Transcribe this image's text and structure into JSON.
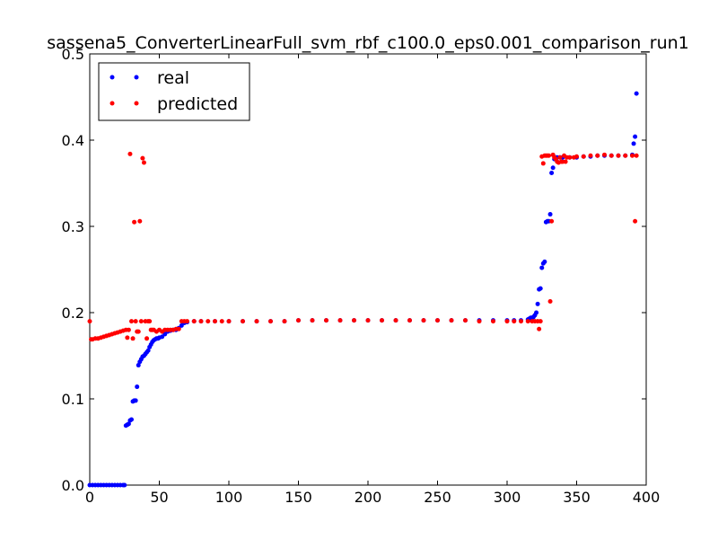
{
  "chart_data": {
    "type": "scatter",
    "title": "sassena5_ConverterLinearFull_svm_rbf_c100.0_eps0.001_comparison_run1",
    "xlabel": "",
    "ylabel": "",
    "xlim": [
      0,
      400
    ],
    "ylim": [
      0,
      0.5
    ],
    "x_ticks": [
      0,
      50,
      100,
      150,
      200,
      250,
      300,
      350,
      400
    ],
    "y_ticks": [
      0.0,
      0.1,
      0.2,
      0.3,
      0.4,
      0.5
    ],
    "x_tick_labels": [
      "0",
      "50",
      "100",
      "150",
      "200",
      "250",
      "300",
      "350",
      "400"
    ],
    "y_tick_labels": [
      "0.0",
      "0.1",
      "0.2",
      "0.3",
      "0.4",
      "0.5"
    ],
    "grid": false,
    "legend_position": "top-left",
    "series": [
      {
        "name": "real",
        "color": "#0000ff",
        "marker": "circle",
        "points": [
          [
            0,
            0
          ],
          [
            2,
            0
          ],
          [
            4,
            0
          ],
          [
            6,
            0
          ],
          [
            8,
            0
          ],
          [
            10,
            0
          ],
          [
            12,
            0
          ],
          [
            14,
            0
          ],
          [
            16,
            0
          ],
          [
            18,
            0
          ],
          [
            20,
            0
          ],
          [
            22,
            0
          ],
          [
            24,
            0
          ],
          [
            25,
            0
          ],
          [
            26,
            0.069
          ],
          [
            27,
            0.07
          ],
          [
            28,
            0.071
          ],
          [
            29,
            0.075
          ],
          [
            30,
            0.076
          ],
          [
            31,
            0.097
          ],
          [
            32,
            0.098
          ],
          [
            33,
            0.098
          ],
          [
            34,
            0.114
          ],
          [
            35,
            0.139
          ],
          [
            36,
            0.143
          ],
          [
            37,
            0.146
          ],
          [
            38,
            0.149
          ],
          [
            39,
            0.15
          ],
          [
            40,
            0.152
          ],
          [
            41,
            0.154
          ],
          [
            42,
            0.156
          ],
          [
            43,
            0.16
          ],
          [
            44,
            0.163
          ],
          [
            45,
            0.166
          ],
          [
            46,
            0.168
          ],
          [
            47,
            0.169
          ],
          [
            48,
            0.17
          ],
          [
            49,
            0.17
          ],
          [
            50,
            0.171
          ],
          [
            52,
            0.172
          ],
          [
            54,
            0.175
          ],
          [
            56,
            0.178
          ],
          [
            58,
            0.179
          ],
          [
            60,
            0.18
          ],
          [
            62,
            0.18
          ],
          [
            64,
            0.182
          ],
          [
            66,
            0.185
          ],
          [
            68,
            0.188
          ],
          [
            70,
            0.189
          ],
          [
            75,
            0.19
          ],
          [
            80,
            0.19
          ],
          [
            90,
            0.19
          ],
          [
            100,
            0.19
          ],
          [
            110,
            0.19
          ],
          [
            120,
            0.19
          ],
          [
            130,
            0.19
          ],
          [
            140,
            0.19
          ],
          [
            150,
            0.191
          ],
          [
            160,
            0.191
          ],
          [
            170,
            0.191
          ],
          [
            180,
            0.191
          ],
          [
            190,
            0.191
          ],
          [
            200,
            0.191
          ],
          [
            210,
            0.191
          ],
          [
            220,
            0.191
          ],
          [
            230,
            0.191
          ],
          [
            240,
            0.191
          ],
          [
            250,
            0.191
          ],
          [
            260,
            0.191
          ],
          [
            270,
            0.191
          ],
          [
            280,
            0.191
          ],
          [
            290,
            0.191
          ],
          [
            300,
            0.191
          ],
          [
            305,
            0.191
          ],
          [
            310,
            0.191
          ],
          [
            315,
            0.192
          ],
          [
            316,
            0.193
          ],
          [
            317,
            0.194
          ],
          [
            318,
            0.194
          ],
          [
            319,
            0.195
          ],
          [
            320,
            0.197
          ],
          [
            321,
            0.2
          ],
          [
            322,
            0.21
          ],
          [
            323,
            0.227
          ],
          [
            324,
            0.228
          ],
          [
            325,
            0.252
          ],
          [
            326,
            0.257
          ],
          [
            327,
            0.259
          ],
          [
            328,
            0.305
          ],
          [
            329,
            0.306
          ],
          [
            330,
            0.306
          ],
          [
            331,
            0.314
          ],
          [
            332,
            0.362
          ],
          [
            333,
            0.368
          ],
          [
            334,
            0.378
          ],
          [
            335,
            0.38
          ],
          [
            336,
            0.38
          ],
          [
            338,
            0.38
          ],
          [
            340,
            0.38
          ],
          [
            345,
            0.38
          ],
          [
            350,
            0.38
          ],
          [
            355,
            0.381
          ],
          [
            360,
            0.381
          ],
          [
            365,
            0.382
          ],
          [
            370,
            0.382
          ],
          [
            375,
            0.382
          ],
          [
            380,
            0.382
          ],
          [
            385,
            0.382
          ],
          [
            390,
            0.383
          ],
          [
            391,
            0.396
          ],
          [
            392,
            0.404
          ],
          [
            393,
            0.454
          ]
        ]
      },
      {
        "name": "predicted",
        "color": "#ff0000",
        "marker": "circle",
        "points": [
          [
            0,
            0.19
          ],
          [
            1,
            0.169
          ],
          [
            2,
            0.169
          ],
          [
            4,
            0.17
          ],
          [
            6,
            0.17
          ],
          [
            8,
            0.171
          ],
          [
            10,
            0.172
          ],
          [
            12,
            0.173
          ],
          [
            14,
            0.174
          ],
          [
            16,
            0.175
          ],
          [
            18,
            0.176
          ],
          [
            20,
            0.177
          ],
          [
            22,
            0.178
          ],
          [
            24,
            0.179
          ],
          [
            26,
            0.18
          ],
          [
            27,
            0.171
          ],
          [
            28,
            0.18
          ],
          [
            29,
            0.384
          ],
          [
            30,
            0.19
          ],
          [
            31,
            0.17
          ],
          [
            32,
            0.305
          ],
          [
            33,
            0.19
          ],
          [
            34,
            0.178
          ],
          [
            35,
            0.178
          ],
          [
            36,
            0.306
          ],
          [
            37,
            0.19
          ],
          [
            38,
            0.379
          ],
          [
            39,
            0.374
          ],
          [
            40,
            0.19
          ],
          [
            41,
            0.17
          ],
          [
            42,
            0.19
          ],
          [
            43,
            0.19
          ],
          [
            44,
            0.18
          ],
          [
            45,
            0.18
          ],
          [
            46,
            0.18
          ],
          [
            48,
            0.178
          ],
          [
            50,
            0.18
          ],
          [
            52,
            0.178
          ],
          [
            54,
            0.18
          ],
          [
            56,
            0.18
          ],
          [
            58,
            0.18
          ],
          [
            60,
            0.18
          ],
          [
            62,
            0.181
          ],
          [
            64,
            0.181
          ],
          [
            66,
            0.19
          ],
          [
            68,
            0.19
          ],
          [
            70,
            0.19
          ],
          [
            75,
            0.19
          ],
          [
            80,
            0.19
          ],
          [
            85,
            0.19
          ],
          [
            90,
            0.19
          ],
          [
            95,
            0.19
          ],
          [
            100,
            0.19
          ],
          [
            110,
            0.19
          ],
          [
            120,
            0.19
          ],
          [
            130,
            0.19
          ],
          [
            140,
            0.19
          ],
          [
            150,
            0.191
          ],
          [
            160,
            0.191
          ],
          [
            170,
            0.191
          ],
          [
            180,
            0.191
          ],
          [
            190,
            0.191
          ],
          [
            200,
            0.191
          ],
          [
            210,
            0.191
          ],
          [
            220,
            0.191
          ],
          [
            230,
            0.191
          ],
          [
            240,
            0.191
          ],
          [
            250,
            0.191
          ],
          [
            260,
            0.191
          ],
          [
            270,
            0.191
          ],
          [
            280,
            0.19
          ],
          [
            290,
            0.19
          ],
          [
            300,
            0.19
          ],
          [
            305,
            0.19
          ],
          [
            310,
            0.19
          ],
          [
            315,
            0.19
          ],
          [
            318,
            0.19
          ],
          [
            320,
            0.19
          ],
          [
            322,
            0.19
          ],
          [
            323,
            0.181
          ],
          [
            324,
            0.19
          ],
          [
            325,
            0.381
          ],
          [
            326,
            0.373
          ],
          [
            327,
            0.382
          ],
          [
            328,
            0.382
          ],
          [
            329,
            0.382
          ],
          [
            330,
            0.382
          ],
          [
            331,
            0.213
          ],
          [
            332,
            0.306
          ],
          [
            333,
            0.383
          ],
          [
            334,
            0.38
          ],
          [
            335,
            0.378
          ],
          [
            336,
            0.375
          ],
          [
            337,
            0.374
          ],
          [
            338,
            0.38
          ],
          [
            339,
            0.375
          ],
          [
            340,
            0.375
          ],
          [
            341,
            0.382
          ],
          [
            342,
            0.375
          ],
          [
            343,
            0.38
          ],
          [
            345,
            0.38
          ],
          [
            348,
            0.38
          ],
          [
            350,
            0.381
          ],
          [
            355,
            0.381
          ],
          [
            360,
            0.382
          ],
          [
            365,
            0.382
          ],
          [
            370,
            0.383
          ],
          [
            375,
            0.382
          ],
          [
            380,
            0.382
          ],
          [
            385,
            0.382
          ],
          [
            390,
            0.382
          ],
          [
            392,
            0.306
          ],
          [
            393,
            0.382
          ]
        ]
      }
    ]
  }
}
